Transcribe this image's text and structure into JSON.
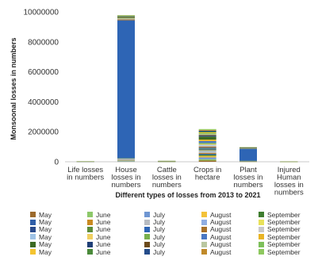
{
  "chart_data": {
    "type": "bar",
    "stacked": true,
    "title": "",
    "xlabel": "Different types of losses from 2013 to 2021",
    "ylabel": "Monsoonal losses in numbers",
    "ylim": [
      0,
      10000000
    ],
    "yticks": [
      "0",
      "2000000",
      "4000000",
      "6000000",
      "8000000",
      "10000000"
    ],
    "grid": false,
    "legend_position": "bottom",
    "categories": [
      [
        "Life losses",
        "in numbers"
      ],
      [
        "House",
        "losses in",
        "numbers"
      ],
      [
        "Cattle",
        "losses in",
        "numbers"
      ],
      [
        "Crops in",
        "hectare"
      ],
      [
        "Plant",
        "losses in",
        "numbers"
      ],
      [
        "Injured",
        "Human",
        "losses in",
        "numbers"
      ]
    ],
    "series": [
      {
        "name": "May",
        "color": "#9c6a2c",
        "values": [
          1000,
          12000,
          2000,
          80000,
          5000,
          200
        ]
      },
      {
        "name": "June",
        "color": "#8dc86a",
        "values": [
          1000,
          20000,
          2000,
          90000,
          5000,
          200
        ]
      },
      {
        "name": "July",
        "color": "#6f96d2",
        "values": [
          1000,
          40000,
          2000,
          120000,
          8000,
          200
        ]
      },
      {
        "name": "August",
        "color": "#f3c23a",
        "values": [
          1000,
          25000,
          2000,
          100000,
          6000,
          200
        ]
      },
      {
        "name": "September",
        "color": "#3e7d2f",
        "values": [
          1000,
          15000,
          2000,
          80000,
          5000,
          200
        ]
      },
      {
        "name": "May",
        "color": "#2f5ea8",
        "values": [
          1000,
          12000,
          2000,
          60000,
          5000,
          200
        ]
      },
      {
        "name": "June",
        "color": "#c98a22",
        "values": [
          1000,
          18000,
          2000,
          60000,
          5000,
          200
        ]
      },
      {
        "name": "July",
        "color": "#b8bcc2",
        "values": [
          1000,
          30000,
          2000,
          70000,
          8000,
          200
        ]
      },
      {
        "name": "August",
        "color": "#90aee3",
        "values": [
          1000,
          20000,
          2000,
          60000,
          6000,
          200
        ]
      },
      {
        "name": "September",
        "color": "#e8e15a",
        "values": [
          1000,
          12000,
          2000,
          50000,
          5000,
          200
        ]
      },
      {
        "name": "May",
        "color": "#2a4b8c",
        "values": [
          1000,
          15000,
          2000,
          60000,
          5000,
          200
        ]
      },
      {
        "name": "June",
        "color": "#5c8c3a",
        "values": [
          1000,
          20000,
          2000,
          50000,
          5000,
          200
        ]
      },
      {
        "name": "July",
        "color": "#2e65b5",
        "values": [
          1000,
          9200000,
          2000,
          60000,
          800000,
          200
        ]
      },
      {
        "name": "August",
        "color": "#a7712a",
        "values": [
          1000,
          60000,
          2000,
          80000,
          8000,
          200
        ]
      },
      {
        "name": "September",
        "color": "#c9c9c9",
        "values": [
          1000,
          20000,
          2000,
          50000,
          5000,
          200
        ]
      },
      {
        "name": "May",
        "color": "#9fc3e6",
        "values": [
          1000,
          12000,
          2000,
          60000,
          5000,
          200
        ]
      },
      {
        "name": "June",
        "color": "#f0d062",
        "values": [
          1000,
          15000,
          2000,
          50000,
          5000,
          200
        ]
      },
      {
        "name": "July",
        "color": "#79b04d",
        "values": [
          1000,
          20000,
          2000,
          80000,
          8000,
          200
        ]
      },
      {
        "name": "August",
        "color": "#4a78c4",
        "values": [
          1000,
          20000,
          2000,
          120000,
          8000,
          200
        ]
      },
      {
        "name": "September",
        "color": "#e8b425",
        "values": [
          1000,
          20000,
          2000,
          100000,
          8000,
          200
        ]
      },
      {
        "name": "May",
        "color": "#3c6a22",
        "values": [
          1000,
          60000,
          2000,
          200000,
          10000,
          200
        ]
      },
      {
        "name": "June",
        "color": "#1f3f77",
        "values": [
          1000,
          15000,
          2000,
          60000,
          5000,
          200
        ]
      },
      {
        "name": "July",
        "color": "#6b4a1a",
        "values": [
          1000,
          10000,
          2000,
          50000,
          5000,
          200
        ]
      },
      {
        "name": "August",
        "color": "#b9c7a0",
        "values": [
          1000,
          12000,
          2000,
          60000,
          5000,
          200
        ]
      },
      {
        "name": "September",
        "color": "#7dbf5a",
        "values": [
          1000,
          12000,
          2000,
          60000,
          5000,
          200
        ]
      },
      {
        "name": "May",
        "color": "#f4c430",
        "values": [
          1000,
          10000,
          2000,
          50000,
          5000,
          200
        ]
      },
      {
        "name": "June",
        "color": "#4a8a3a",
        "values": [
          1000,
          10000,
          2000,
          50000,
          5000,
          200
        ]
      },
      {
        "name": "July",
        "color": "#244c8a",
        "values": [
          1000,
          10000,
          2000,
          60000,
          5000,
          200
        ]
      },
      {
        "name": "August",
        "color": "#c08a2a",
        "values": [
          1000,
          10000,
          2000,
          50000,
          5000,
          200
        ]
      },
      {
        "name": "September",
        "color": "#8ec85f",
        "values": [
          1000,
          30000,
          2000,
          60000,
          5000,
          200
        ]
      }
    ]
  }
}
